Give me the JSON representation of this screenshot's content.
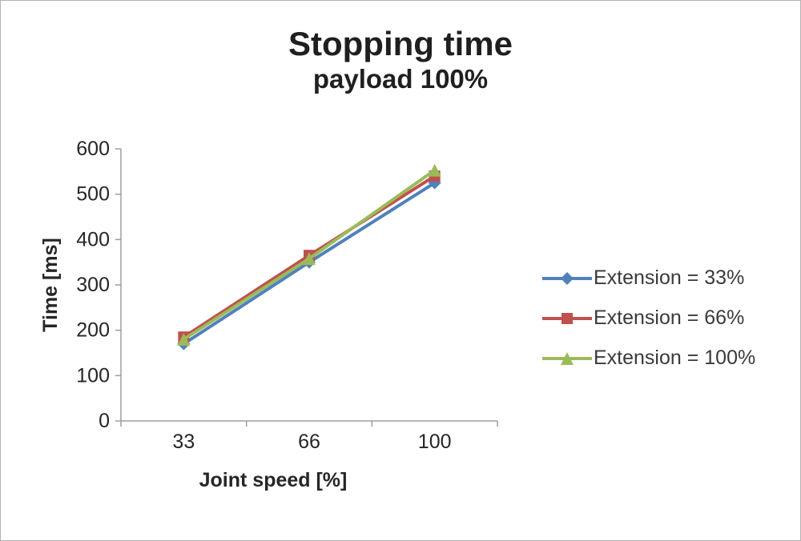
{
  "title": "Stopping time",
  "subtitle": "payload 100%",
  "chart_data": {
    "type": "line",
    "categories": [
      "33",
      "66",
      "100"
    ],
    "series": [
      {
        "name": "Extension = 33%",
        "values": [
          170,
          350,
          525
        ],
        "color": "#4f81bd",
        "marker": "diamond"
      },
      {
        "name": "Extension = 66%",
        "values": [
          185,
          365,
          540
        ],
        "color": "#c0504d",
        "marker": "square"
      },
      {
        "name": "Extension = 100%",
        "values": [
          180,
          358,
          553
        ],
        "color": "#9bbb59",
        "marker": "triangle"
      }
    ],
    "title": "Stopping time",
    "subtitle": "payload 100%",
    "xlabel": "Joint speed [%]",
    "ylabel": "Time [ms]",
    "ylim": [
      0,
      600
    ],
    "ytick_step": 100,
    "grid": false,
    "legend_position": "right",
    "axis_color": "#9d9d9d",
    "text_color": "#262626"
  }
}
